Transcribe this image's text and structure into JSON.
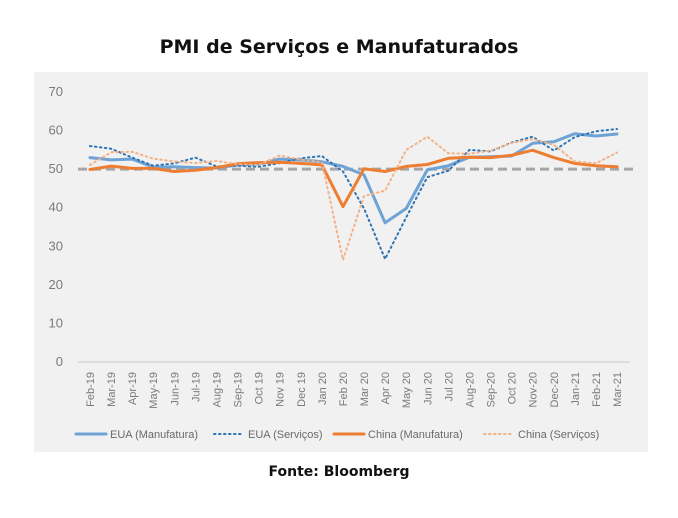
{
  "title": "PMI de Serviços e Manufaturados",
  "source": "Fonte: Bloomberg",
  "chart_data": {
    "type": "line",
    "categories": [
      "Feb-19",
      "Mar-19",
      "Apr-19",
      "May-19",
      "Jun-19",
      "Jul-19",
      "Aug-19",
      "Sep-19",
      "Oct-19",
      "Nov-19",
      "Dec-19",
      "Jan-20",
      "Feb-20",
      "Mar-20",
      "Apr-20",
      "May-20",
      "Jun-20",
      "Jul-20",
      "Aug-20",
      "Sep-20",
      "Oct-20",
      "Nov-20",
      "Dec-20",
      "Jan-21",
      "Feb-21",
      "Mar-21"
    ],
    "xtick_labels": [
      "Feb-19",
      "Mar-19",
      "Apr-19",
      "May-19",
      "Jun-19",
      "Jul-19",
      "Aug-19",
      "Sep-19",
      "Oct 19",
      "Nov 19",
      "Dec 19",
      "Jan 20",
      "Feb 20",
      "Mar 20",
      "Apr 20",
      "May 20",
      "Jun 20",
      "Jul 20",
      "Aug-20",
      "Sep-20",
      "Oct 20",
      "Nov-20",
      "Dec-20",
      "Jan-21",
      "Feb-21",
      "Mar-21"
    ],
    "yticks": [
      "0",
      "10",
      "20",
      "30",
      "40",
      "50",
      "60",
      "70"
    ],
    "ylim": [
      0,
      70
    ],
    "reference_line": 50,
    "grid": false,
    "legend_position": "bottom",
    "series": [
      {
        "name": "EUA (Manufatura)",
        "style": "solid",
        "color": "#6fa3d6",
        "width": 3,
        "values": [
          53.0,
          52.4,
          52.6,
          50.5,
          50.6,
          50.4,
          50.3,
          51.1,
          51.3,
          52.6,
          52.4,
          51.9,
          50.7,
          48.5,
          36.1,
          39.8,
          49.8,
          50.9,
          53.1,
          53.2,
          53.4,
          56.7,
          57.1,
          59.2,
          58.6,
          59.1
        ]
      },
      {
        "name": "EUA (Serviços)",
        "style": "dotted",
        "color": "#2e75b6",
        "width": 2,
        "values": [
          56.0,
          55.3,
          53.0,
          50.9,
          51.5,
          53.0,
          50.7,
          50.9,
          50.6,
          51.6,
          52.8,
          53.4,
          49.4,
          39.8,
          26.7,
          37.5,
          47.9,
          49.6,
          55.0,
          54.6,
          56.9,
          58.4,
          54.8,
          58.3,
          59.8,
          60.4
        ]
      },
      {
        "name": "China (Manufatura)",
        "style": "solid",
        "color": "#ed7d31",
        "width": 3,
        "values": [
          49.9,
          50.8,
          50.2,
          50.2,
          49.4,
          49.7,
          50.4,
          51.4,
          51.7,
          51.8,
          51.5,
          51.1,
          40.3,
          50.1,
          49.4,
          50.7,
          51.2,
          52.8,
          53.1,
          53.0,
          53.6,
          54.9,
          53.0,
          51.5,
          50.9,
          50.6
        ]
      },
      {
        "name": "China (Serviços)",
        "style": "dotted",
        "color": "#f4b183",
        "width": 2,
        "values": [
          51.1,
          54.4,
          54.5,
          52.7,
          52.0,
          51.6,
          52.1,
          51.3,
          51.1,
          53.5,
          52.5,
          51.8,
          26.5,
          43.0,
          44.4,
          55.0,
          58.4,
          54.1,
          54.0,
          54.8,
          56.8,
          57.8,
          56.3,
          52.0,
          51.5,
          54.3
        ]
      }
    ]
  }
}
